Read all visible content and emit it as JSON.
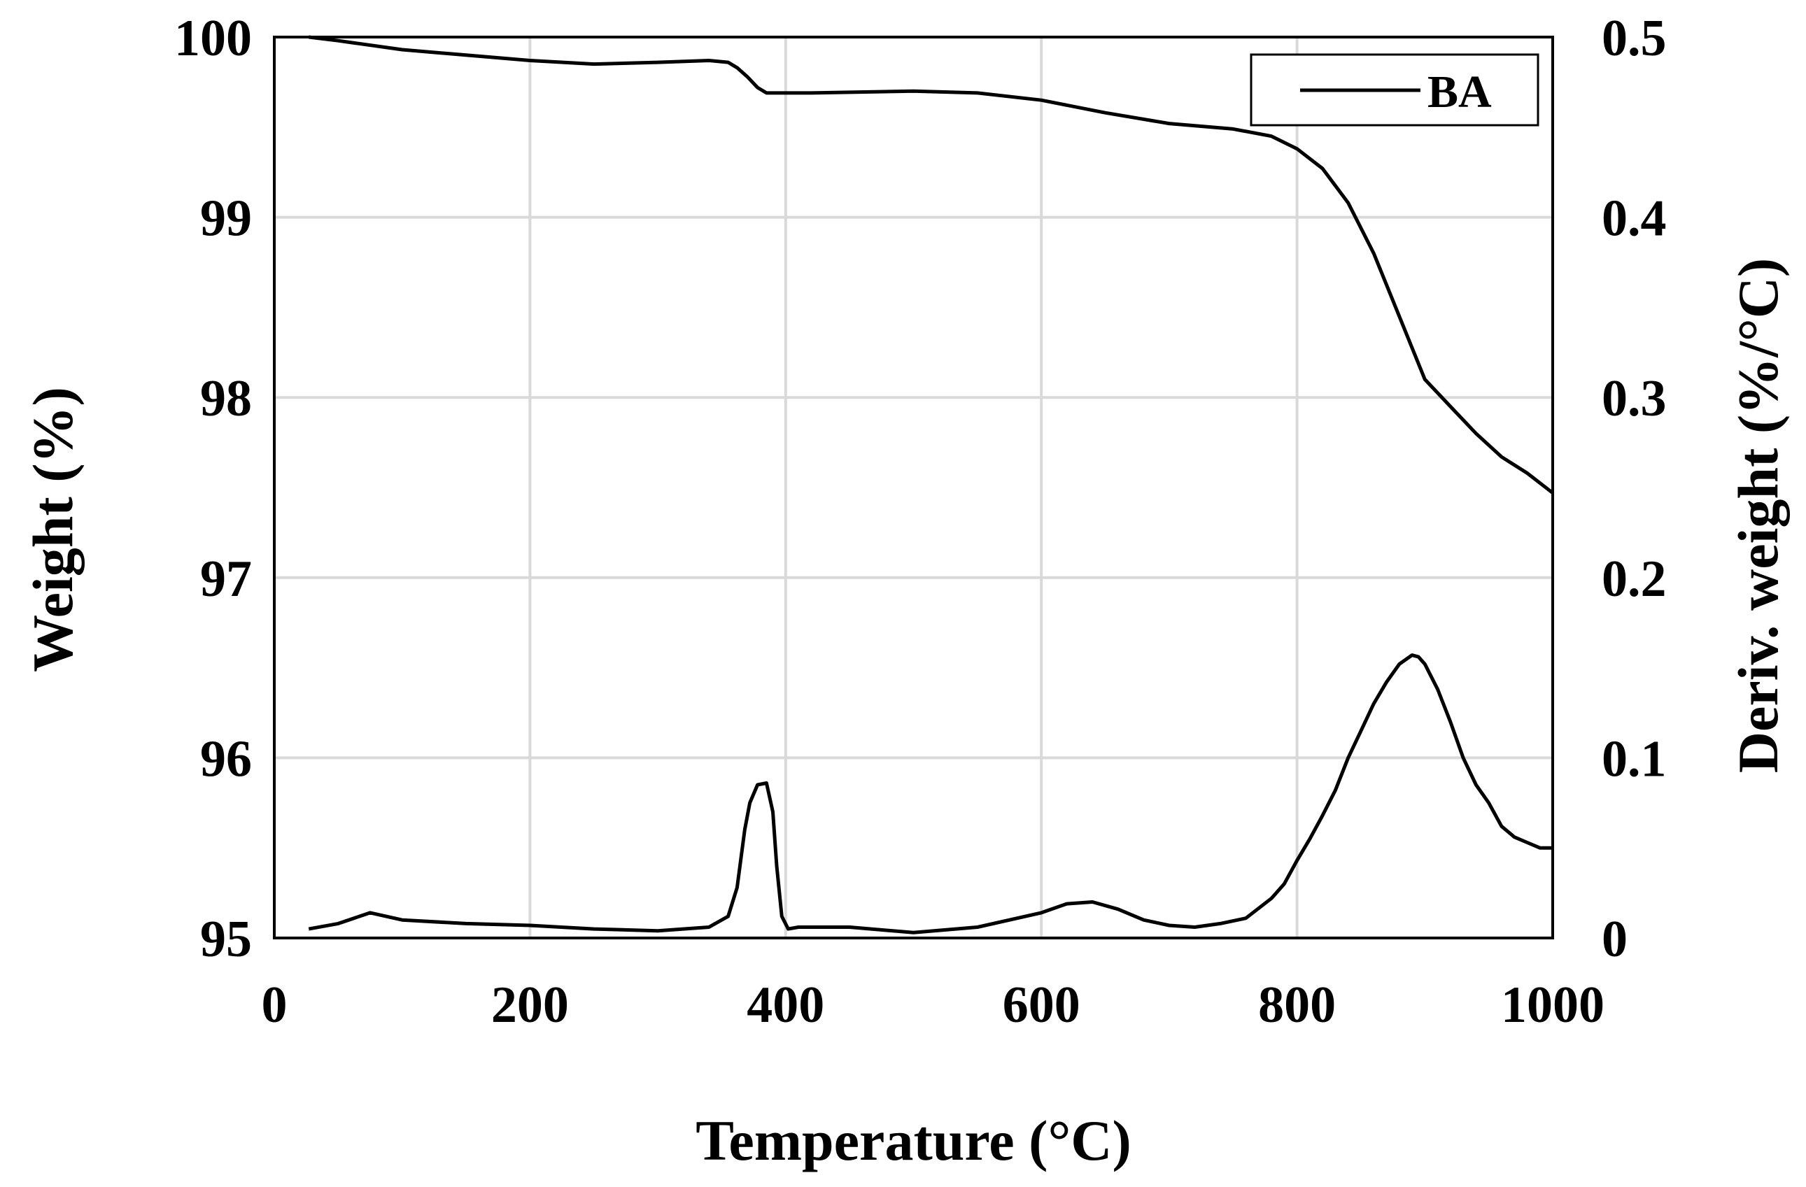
{
  "chart_data": {
    "type": "line",
    "title": "",
    "xlabel": "Temperature (°C)",
    "ylabel": "Weight (%)",
    "y2label": "Deriv. weight (%/°C)",
    "xlim": [
      0,
      1000
    ],
    "ylim": [
      95,
      100
    ],
    "y2lim": [
      0,
      0.5
    ],
    "x_ticks": [
      "0",
      "200",
      "400",
      "600",
      "800",
      "1000"
    ],
    "y_ticks": [
      "95",
      "96",
      "97",
      "98",
      "99",
      "100"
    ],
    "y2_ticks": [
      "0",
      "0.1",
      "0.2",
      "0.3",
      "0.4",
      "0.5"
    ],
    "grid": true,
    "legend": {
      "position": "top-right",
      "entries": [
        "BA"
      ]
    },
    "series": [
      {
        "name": "BA",
        "axis": "left",
        "x": [
          27,
          50,
          100,
          150,
          200,
          250,
          300,
          340,
          355,
          362,
          370,
          378,
          385,
          395,
          420,
          500,
          550,
          600,
          650,
          700,
          750,
          780,
          800,
          820,
          840,
          860,
          880,
          900,
          920,
          940,
          960,
          980,
          1000
        ],
        "y": [
          100.0,
          99.98,
          99.93,
          99.9,
          99.87,
          99.85,
          99.86,
          99.87,
          99.86,
          99.83,
          99.78,
          99.72,
          99.69,
          99.69,
          99.69,
          99.7,
          99.69,
          99.65,
          99.58,
          99.52,
          99.49,
          99.45,
          99.38,
          99.27,
          99.08,
          98.8,
          98.45,
          98.1,
          97.95,
          97.8,
          97.67,
          97.58,
          97.47
        ]
      },
      {
        "axis": "right",
        "x": [
          27,
          50,
          75,
          100,
          150,
          200,
          250,
          300,
          340,
          355,
          362,
          368,
          372,
          378,
          385,
          390,
          393,
          397,
          402,
          410,
          450,
          500,
          550,
          600,
          620,
          640,
          660,
          680,
          700,
          720,
          740,
          760,
          780,
          790,
          800,
          810,
          820,
          830,
          840,
          850,
          860,
          870,
          880,
          890,
          895,
          900,
          910,
          920,
          930,
          940,
          950,
          960,
          970,
          980,
          990,
          1000
        ],
        "y": [
          0.005,
          0.008,
          0.014,
          0.01,
          0.008,
          0.007,
          0.005,
          0.004,
          0.006,
          0.012,
          0.028,
          0.06,
          0.075,
          0.085,
          0.086,
          0.07,
          0.04,
          0.012,
          0.005,
          0.006,
          0.006,
          0.003,
          0.006,
          0.014,
          0.019,
          0.02,
          0.016,
          0.01,
          0.007,
          0.006,
          0.008,
          0.011,
          0.022,
          0.03,
          0.043,
          0.055,
          0.068,
          0.082,
          0.1,
          0.115,
          0.13,
          0.142,
          0.152,
          0.157,
          0.156,
          0.152,
          0.138,
          0.12,
          0.1,
          0.085,
          0.075,
          0.062,
          0.056,
          0.053,
          0.05,
          0.05
        ]
      }
    ]
  }
}
